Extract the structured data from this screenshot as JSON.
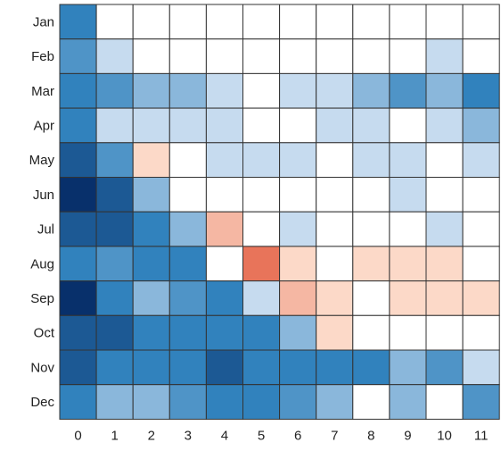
{
  "chart_data": {
    "type": "heatmap",
    "title": "",
    "xlabel": "",
    "ylabel": "",
    "x_categories": [
      "0",
      "1",
      "2",
      "3",
      "4",
      "5",
      "6",
      "7",
      "8",
      "9",
      "10",
      "11"
    ],
    "y_categories": [
      "Jan",
      "Feb",
      "Mar",
      "Apr",
      "May",
      "Jun",
      "Jul",
      "Aug",
      "Sep",
      "Oct",
      "Nov",
      "Dec"
    ],
    "value_range": [
      -4,
      10
    ],
    "colormap": "diverging: red (negative) - white (zero) - blue (positive)",
    "colors": {
      "strong_blue": "#08306b",
      "mid_blue": "#3182bd",
      "light_blue": "#c6dbef",
      "white": "#ffffff",
      "light_red": "#fcd9c8",
      "strong_red": "#e8745a",
      "grid": "#333333"
    },
    "grid": true,
    "legend": "none",
    "values": [
      [
        6,
        0,
        0,
        0,
        0,
        0,
        0,
        0,
        0,
        0,
        0,
        0
      ],
      [
        5,
        1,
        0,
        0,
        0,
        0,
        0,
        0,
        0,
        0,
        1,
        0
      ],
      [
        6,
        5,
        3,
        3,
        1,
        0,
        1,
        1,
        3,
        5,
        3,
        6
      ],
      [
        6,
        1,
        1,
        1,
        1,
        0,
        0,
        1,
        1,
        0,
        1,
        3
      ],
      [
        8,
        5,
        -1,
        0,
        1,
        1,
        1,
        0,
        1,
        1,
        0,
        1
      ],
      [
        10,
        8,
        3,
        0,
        0,
        0,
        0,
        0,
        0,
        1,
        0,
        0
      ],
      [
        8,
        8,
        6,
        3,
        -2,
        0,
        1,
        0,
        0,
        0,
        1,
        0
      ],
      [
        6,
        5,
        6,
        6,
        0,
        -4,
        -1,
        0,
        -1,
        -1,
        -1,
        0
      ],
      [
        10,
        6,
        3,
        5,
        6,
        1,
        -2,
        -1,
        0,
        -1,
        -1,
        -1
      ],
      [
        8,
        8,
        6,
        6,
        6,
        6,
        3,
        -1,
        0,
        0,
        0,
        0
      ],
      [
        8,
        6,
        6,
        6,
        8,
        6,
        6,
        6,
        6,
        3,
        5,
        1
      ],
      [
        6,
        3,
        3,
        5,
        6,
        6,
        5,
        3,
        0,
        3,
        0,
        5
      ]
    ]
  }
}
